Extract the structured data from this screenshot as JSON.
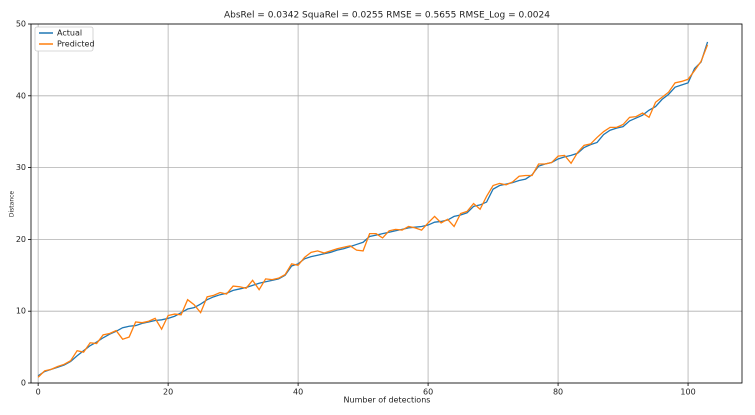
{
  "chart_data": {
    "type": "line",
    "title": "AbsRel = 0.0342  SquaRel = 0.0255  RMSE = 0.5655   RMSE_Log = 0.0024",
    "xlabel": "Number of detections",
    "ylabel": "Distance",
    "x": [
      0,
      1,
      2,
      3,
      4,
      5,
      6,
      7,
      8,
      9,
      10,
      11,
      12,
      13,
      14,
      15,
      16,
      17,
      18,
      19,
      20,
      21,
      22,
      23,
      24,
      25,
      26,
      27,
      28,
      29,
      30,
      31,
      32,
      33,
      34,
      35,
      36,
      37,
      38,
      39,
      40,
      41,
      42,
      43,
      44,
      45,
      46,
      47,
      48,
      49,
      50,
      51,
      52,
      53,
      54,
      55,
      56,
      57,
      58,
      59,
      60,
      61,
      62,
      63,
      64,
      65,
      66,
      67,
      68,
      69,
      70,
      71,
      72,
      73,
      74,
      75,
      76,
      77,
      78,
      79,
      80,
      81,
      82,
      83,
      84,
      85,
      86,
      87,
      88,
      89,
      90,
      91,
      92,
      93,
      94,
      95,
      96,
      97,
      98,
      99,
      100,
      101,
      102,
      103
    ],
    "series": [
      {
        "name": "Actual",
        "color": "#1f77b4",
        "values": [
          1.0,
          1.6,
          1.9,
          2.2,
          2.5,
          3.0,
          3.8,
          4.5,
          5.2,
          5.7,
          6.3,
          6.8,
          7.2,
          7.7,
          7.9,
          8.0,
          8.3,
          8.5,
          8.7,
          8.8,
          9.0,
          9.3,
          9.8,
          10.3,
          10.5,
          11.0,
          11.6,
          12.0,
          12.3,
          12.5,
          12.9,
          13.1,
          13.3,
          13.6,
          13.9,
          14.1,
          14.3,
          14.5,
          15.0,
          16.3,
          16.6,
          17.3,
          17.6,
          17.8,
          18.0,
          18.2,
          18.5,
          18.7,
          19.0,
          19.3,
          19.6,
          20.4,
          20.6,
          20.8,
          21.0,
          21.2,
          21.4,
          21.6,
          21.7,
          21.8,
          22.0,
          22.4,
          22.5,
          22.7,
          23.2,
          23.4,
          23.7,
          24.6,
          24.8,
          25.2,
          27.0,
          27.5,
          27.7,
          27.9,
          28.2,
          28.4,
          29.0,
          30.2,
          30.5,
          30.7,
          31.2,
          31.5,
          31.7,
          32.0,
          32.8,
          33.2,
          33.5,
          34.6,
          35.2,
          35.5,
          35.7,
          36.5,
          36.9,
          37.3,
          38.0,
          38.5,
          39.5,
          40.2,
          41.2,
          41.5,
          41.8,
          43.8,
          44.7,
          47.5
        ]
      },
      {
        "name": "Predicted",
        "color": "#ff7f0e",
        "values": [
          0.8,
          1.7,
          1.9,
          2.3,
          2.6,
          3.1,
          4.5,
          4.3,
          5.6,
          5.5,
          6.7,
          6.9,
          7.3,
          6.1,
          6.4,
          8.5,
          8.4,
          8.6,
          9.0,
          7.5,
          9.4,
          9.6,
          9.5,
          11.6,
          10.9,
          9.8,
          12.0,
          12.2,
          12.6,
          12.4,
          13.5,
          13.4,
          13.2,
          14.3,
          13.0,
          14.5,
          14.4,
          14.6,
          15.1,
          16.6,
          16.4,
          17.5,
          18.2,
          18.4,
          18.1,
          18.4,
          18.7,
          18.9,
          19.1,
          18.5,
          18.4,
          20.8,
          20.8,
          20.2,
          21.2,
          21.4,
          21.3,
          21.8,
          21.6,
          21.3,
          22.3,
          23.2,
          22.3,
          22.8,
          21.8,
          23.6,
          23.9,
          25.0,
          24.2,
          26.0,
          27.5,
          27.8,
          27.6,
          28.0,
          28.8,
          28.9,
          28.9,
          30.5,
          30.5,
          30.7,
          31.6,
          31.7,
          30.6,
          32.1,
          33.1,
          33.3,
          34.2,
          35.0,
          35.6,
          35.6,
          36.0,
          37.0,
          37.1,
          37.6,
          37.0,
          39.1,
          39.8,
          40.5,
          41.8,
          42.0,
          42.3,
          43.5,
          44.8,
          47.1
        ]
      }
    ],
    "xlim": [
      -1.1,
      108.3
    ],
    "ylim": [
      0,
      50
    ],
    "xticks": [
      0,
      20,
      40,
      60,
      80,
      100
    ],
    "yticks": [
      0,
      10,
      20,
      30,
      40,
      50
    ],
    "grid": true,
    "legend": "upper left"
  }
}
